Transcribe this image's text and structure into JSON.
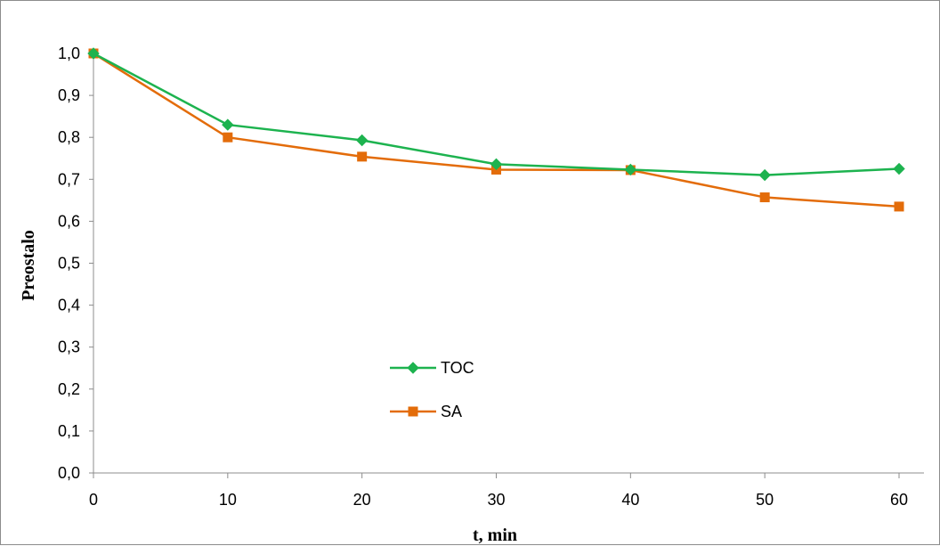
{
  "chart_data": {
    "type": "line",
    "xlabel": "t, min",
    "ylabel": "Preostalo",
    "x": [
      0,
      10,
      20,
      30,
      40,
      50,
      60
    ],
    "xticks": [
      "0",
      "10",
      "20",
      "30",
      "40",
      "50",
      "60"
    ],
    "xlim": [
      0,
      60
    ],
    "ylim": [
      0,
      1.0
    ],
    "yticks": [
      "0,0",
      "0,1",
      "0,2",
      "0,3",
      "0,4",
      "0,5",
      "0,6",
      "0,7",
      "0,8",
      "0,9",
      "1,0"
    ],
    "grid": false,
    "legend_position": "center-left",
    "series": [
      {
        "name": "TOC",
        "color": "#1db34f",
        "marker": "diamond",
        "values": [
          1.0,
          0.83,
          0.793,
          0.736,
          0.723,
          0.71,
          0.725
        ]
      },
      {
        "name": "SA",
        "color": "#e36c0a",
        "marker": "square",
        "values": [
          1.0,
          0.8,
          0.754,
          0.723,
          0.722,
          0.657,
          0.635
        ]
      }
    ]
  }
}
